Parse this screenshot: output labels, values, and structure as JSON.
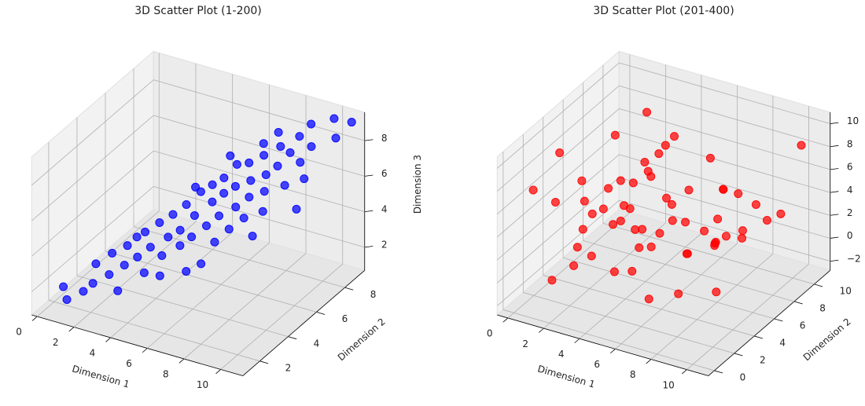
{
  "chart_data": [
    {
      "type": "scatter3d",
      "title": "3D Scatter Plot (1-200)",
      "xlabel": "Dimension 1",
      "ylabel": "Dimension 2",
      "zlabel": "Dimension 3",
      "color": "#0000ff",
      "x": [
        0.5,
        1.0,
        1.5,
        1.8,
        2.0,
        2.3,
        2.6,
        2.9,
        3.1,
        3.3,
        3.5,
        3.7,
        3.9,
        4.0,
        4.2,
        4.4,
        4.5,
        4.7,
        4.9,
        5.0,
        5.1,
        5.3,
        5.4,
        5.6,
        5.7,
        5.9,
        6.0,
        6.1,
        6.2,
        6.4,
        6.5,
        6.6,
        6.8,
        6.9,
        7.0,
        7.1,
        7.3,
        7.4,
        7.6,
        7.7,
        7.9,
        8.0,
        8.2,
        8.3,
        8.5,
        8.7,
        8.9,
        9.0,
        9.3,
        9.6,
        10.0,
        10.4,
        10.8,
        3.0,
        4.6,
        5.5,
        6.3,
        7.2,
        8.1,
        2.5,
        5.8,
        6.7,
        4.3,
        9.8,
        1.2
      ],
      "y": [
        2.0,
        1.6,
        3.0,
        2.4,
        3.5,
        2.9,
        3.8,
        3.2,
        4.4,
        3.6,
        4.9,
        4.0,
        3.3,
        5.2,
        4.6,
        3.9,
        5.5,
        4.8,
        6.0,
        4.4,
        5.3,
        6.3,
        4.7,
        5.9,
        6.6,
        5.1,
        6.2,
        7.0,
        5.6,
        6.5,
        4.9,
        7.2,
        6.0,
        5.4,
        6.8,
        7.6,
        6.3,
        5.8,
        7.1,
        8.0,
        6.6,
        7.4,
        6.1,
        7.9,
        8.3,
        7.0,
        8.6,
        7.7,
        8.1,
        7.2,
        8.8,
        8.4,
        9.0,
        2.6,
        3.5,
        7.3,
        4.2,
        8.5,
        5.5,
        4.6,
        3.8,
        8.1,
        6.4,
        6.4,
        2.5
      ],
      "z": [
        1.7,
        1.4,
        2.6,
        2.0,
        3.0,
        2.3,
        3.4,
        2.8,
        3.9,
        3.1,
        4.2,
        3.5,
        2.6,
        4.6,
        3.8,
        3.3,
        5.1,
        4.2,
        5.6,
        3.7,
        4.8,
        5.9,
        4.1,
        5.3,
        6.2,
        4.6,
        5.7,
        6.8,
        4.9,
        6.0,
        4.0,
        6.9,
        5.3,
        4.5,
        6.3,
        7.2,
        5.8,
        5.0,
        6.6,
        7.6,
        6.1,
        7.0,
        5.4,
        7.5,
        8.2,
        6.4,
        8.8,
        7.3,
        8.0,
        6.9,
        9.3,
        8.6,
        9.2,
        1.8,
        2.5,
        6.9,
        3.2,
        7.9,
        4.4,
        3.3,
        2.9,
        7.4,
        5.4,
        5.8,
        1.3
      ],
      "xlim": [
        -0.3,
        11.2
      ],
      "ylim": [
        0.8,
        9.4
      ],
      "zlim": [
        0.7,
        9.6
      ],
      "xticks": [
        0,
        2,
        4,
        6,
        8,
        10
      ],
      "yticks": [
        2,
        4,
        6,
        8
      ],
      "zticks": [
        2,
        4,
        6,
        8
      ],
      "grid": true
    },
    {
      "type": "scatter3d",
      "title": "3D Scatter Plot (201-400)",
      "xlabel": "Dimension 1",
      "ylabel": "Dimension 2",
      "zlabel": "Dimension 3",
      "color": "#ff0000",
      "x": [
        1.2,
        5.6,
        8.9,
        3.4,
        7.1,
        0.5,
        9.6,
        2.8,
        6.3,
        4.7,
        8.2,
        1.9,
        5.1,
        7.8,
        3.0,
        9.1,
        0.8,
        6.7,
        4.2,
        2.3,
        8.6,
        5.9,
        1.5,
        7.4,
        3.8,
        9.8,
        0.3,
        6.1,
        4.9,
        2.6,
        8.0,
        5.3,
        1.1,
        7.6,
        3.5,
        9.4,
        0.9,
        6.9,
        4.4,
        2.1,
        8.4,
        5.7,
        1.7,
        7.2,
        3.2,
        9.0,
        0.6,
        6.5,
        4.0,
        2.9,
        8.8,
        5.0,
        1.4,
        7.9,
        3.6,
        10.2,
        0.2,
        6.0,
        4.6,
        9.5
      ],
      "y": [
        7.3,
        2.1,
        9.4,
        4.6,
        0.8,
        5.9,
        3.2,
        8.7,
        6.1,
        1.5,
        5.4,
        9.9,
        3.7,
        7.0,
        2.4,
        6.6,
        0.5,
        8.2,
        4.1,
        6.9,
        1.9,
        9.1,
        3.3,
        5.8,
        7.7,
        2.7,
        9.6,
        0.9,
        6.4,
        4.3,
        8.5,
        1.2,
        5.1,
        3.9,
        9.0,
        7.4,
        2.2,
        4.8,
        8.0,
        0.4,
        6.2,
        5.6,
        8.9,
        1.7,
        6.8,
        4.0,
        3.5,
        9.3,
        2.9,
        7.9,
        0.7,
        7.1,
        4.4,
        8.3,
        1.4,
        10.5,
        6.0,
        3.0,
        5.2,
        9.7
      ],
      "z": [
        3.1,
        5.4,
        2.2,
        6.8,
        1.0,
        4.5,
        7.3,
        3.8,
        0.6,
        5.9,
        2.7,
        8.1,
        4.0,
        6.2,
        1.7,
        3.5,
        7.9,
        0.2,
        5.1,
        2.4,
        4.8,
        6.5,
        -0.5,
        3.3,
        7.0,
        1.4,
        5.6,
        2.9,
        9.2,
        4.2,
        0.9,
        6.7,
        3.6,
        8.4,
        2.0,
        5.3,
        -1.2,
        4.6,
        1.2,
        7.5,
        3.0,
        5.0,
        2.6,
        6.1,
        -0.8,
        4.3,
        8.8,
        3.9,
        0.4,
        5.7,
        2.3,
        9.5,
        1.8,
        4.9,
        6.4,
        8.5,
        -1.5,
        3.4,
        7.7,
        2.8
      ],
      "xlim": [
        -0.6,
        11.2
      ],
      "ylim": [
        -0.6,
        11.6
      ],
      "zlim": [
        -2.8,
        11
      ],
      "xticks": [
        0,
        2,
        4,
        6,
        8,
        10
      ],
      "yticks": [
        0,
        2,
        4,
        6,
        8,
        10
      ],
      "zticks": [
        {
          "value": -2,
          "label": "−2"
        },
        0,
        2,
        4,
        6,
        8,
        10
      ],
      "grid": true
    }
  ]
}
